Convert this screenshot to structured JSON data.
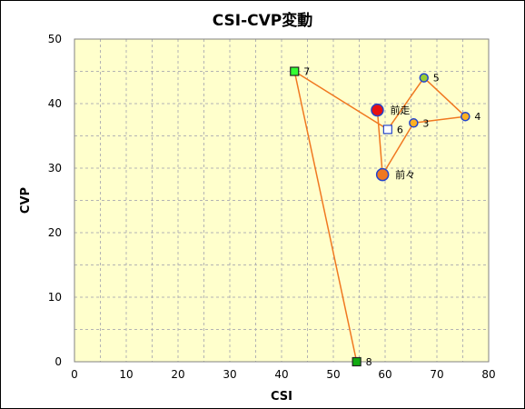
{
  "chart_data": {
    "type": "scatter",
    "title": "CSI-CVP変動",
    "xlabel": "CSI",
    "ylabel": "CVP",
    "xlim": [
      0,
      80
    ],
    "ylim": [
      0,
      50
    ],
    "xticks": [
      0,
      10,
      20,
      30,
      40,
      50,
      60,
      70,
      80
    ],
    "yticks": [
      0,
      10,
      20,
      30,
      40,
      50
    ],
    "grid": true,
    "legend": "none",
    "colors": {
      "plot_bg": "#ffffcc",
      "grid": "#b3b3b3",
      "line": "#f07820",
      "circle_edge": "#2244cc"
    },
    "path_order": [
      "前走",
      "前々",
      "3",
      "4",
      "5",
      "6",
      "7",
      "8"
    ],
    "points": [
      {
        "label": "前走",
        "x": 58.5,
        "y": 39,
        "marker": "circle",
        "size": "large",
        "fill": "#e81010",
        "edge": "#2244cc"
      },
      {
        "label": "前々",
        "x": 59.5,
        "y": 29,
        "marker": "circle",
        "size": "large",
        "fill": "#f07820",
        "edge": "#2244cc"
      },
      {
        "label": "3",
        "x": 65.5,
        "y": 37,
        "marker": "circle",
        "size": "small",
        "fill": "#ffb020",
        "edge": "#2244cc"
      },
      {
        "label": "4",
        "x": 75.5,
        "y": 38,
        "marker": "circle",
        "size": "small",
        "fill": "#ffb020",
        "edge": "#2244cc"
      },
      {
        "label": "5",
        "x": 67.5,
        "y": 44,
        "marker": "circle",
        "size": "small",
        "fill": "#99cc33",
        "edge": "#2244cc"
      },
      {
        "label": "6",
        "x": 60.5,
        "y": 36,
        "marker": "square",
        "size": "small",
        "fill": "#ffffff",
        "edge": "#2244cc"
      },
      {
        "label": "7",
        "x": 42.5,
        "y": 45,
        "marker": "square",
        "size": "small",
        "fill": "#33ff33",
        "edge": "#222222"
      },
      {
        "label": "8",
        "x": 54.5,
        "y": 0,
        "marker": "square",
        "size": "small",
        "fill": "#11aa11",
        "edge": "#222222"
      }
    ]
  }
}
